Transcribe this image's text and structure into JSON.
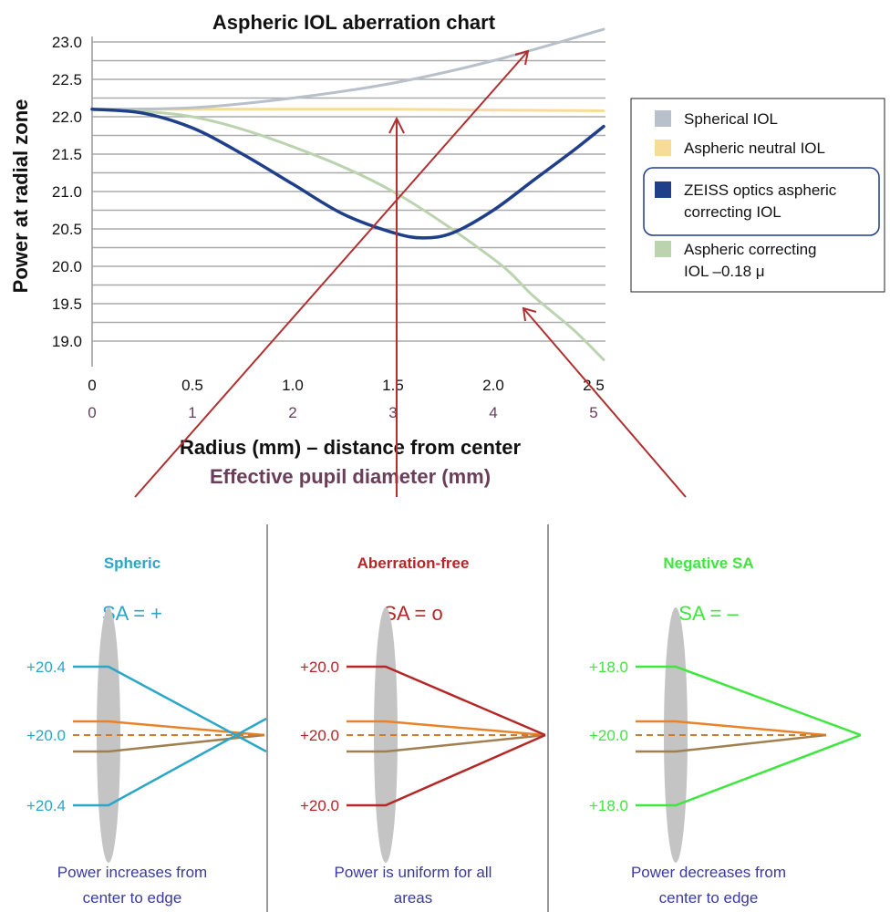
{
  "chart_data": {
    "type": "line",
    "title": "Aspheric IOL aberration chart",
    "ylabel": "Power at radial zone",
    "xlabel": "Radius (mm) – distance from center",
    "xlabel2": "Effective pupil diameter (mm)",
    "ylim": [
      18.7,
      23.2
    ],
    "xlim": [
      0,
      2.55
    ],
    "yticks": [
      "23.0",
      "22.5",
      "22.0",
      "21.5",
      "21.0",
      "20.5",
      "20.0",
      "19.5",
      "19.0"
    ],
    "xticks": [
      "0",
      "0.5",
      "1.0",
      "1.5",
      "2.0",
      "2.5"
    ],
    "xticks2": [
      "0",
      "1",
      "2",
      "3",
      "4",
      "5"
    ],
    "grid": true,
    "legend_position": "right",
    "series": [
      {
        "name": "Spherical IOL",
        "color": "#b8c0cc",
        "x": [
          0,
          0.5,
          1.0,
          1.5,
          2.0,
          2.55
        ],
        "y": [
          22.1,
          22.12,
          22.25,
          22.45,
          22.75,
          23.17
        ]
      },
      {
        "name": "Aspheric neutral IOL",
        "color": "#f6dc98",
        "x": [
          0,
          0.5,
          1.0,
          1.5,
          2.0,
          2.55
        ],
        "y": [
          22.1,
          22.1,
          22.1,
          22.1,
          22.09,
          22.08
        ]
      },
      {
        "name": "ZEISS optics aspheric correcting IOL",
        "color": "#1f3f8a",
        "x": [
          0,
          0.25,
          0.5,
          0.75,
          1.0,
          1.25,
          1.5,
          1.65,
          1.8,
          2.0,
          2.2,
          2.4,
          2.55
        ],
        "y": [
          22.1,
          22.05,
          21.85,
          21.5,
          21.1,
          20.7,
          20.45,
          20.38,
          20.45,
          20.75,
          21.15,
          21.55,
          21.87
        ]
      },
      {
        "name": "Aspheric correcting IOL –0.18 μ",
        "color": "#bcd3b0",
        "x": [
          0,
          0.5,
          1.0,
          1.5,
          2.0,
          2.2,
          2.4,
          2.55
        ],
        "y": [
          22.1,
          22.0,
          21.6,
          21.0,
          20.1,
          19.6,
          19.15,
          18.75
        ]
      }
    ]
  },
  "panels": [
    {
      "title": "Spheric",
      "sa": "SA = +",
      "top": "+20.4",
      "mid": "+20.0",
      "bot": "+20.4",
      "caption1": "Power increases from",
      "caption2": "center to edge",
      "color": "#2aa6c8"
    },
    {
      "title": "Aberration-free",
      "sa": "SA = o",
      "top": "+20.0",
      "mid": "+20.0",
      "bot": "+20.0",
      "caption1": "Power is uniform for all",
      "caption2": "areas",
      "color": "#b52626"
    },
    {
      "title": "Negative SA",
      "sa": "SA = –",
      "top": "+18.0",
      "mid": "+20.0",
      "bot": "+18.0",
      "caption1": "Power decreases from",
      "caption2": "center to edge",
      "color": "#3ee63e"
    }
  ]
}
